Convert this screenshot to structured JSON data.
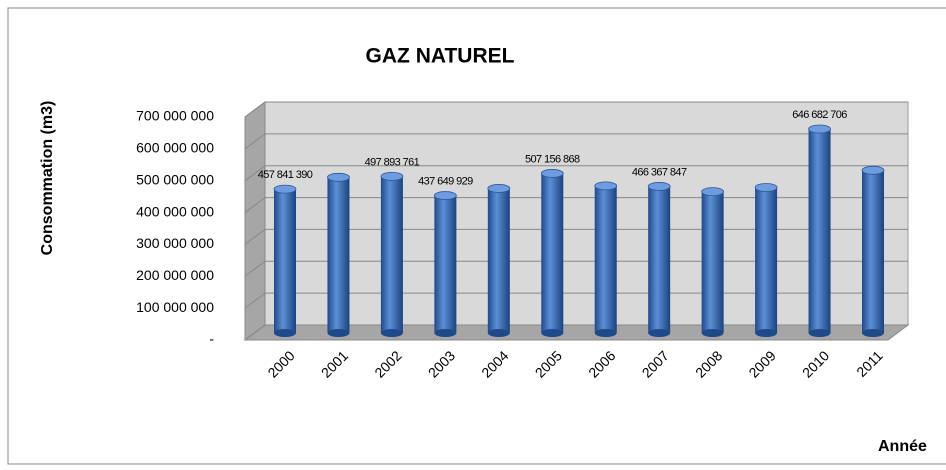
{
  "chart_data": {
    "type": "bar",
    "title": "GAZ NATUREL",
    "y_label": "Consommation  (m3)",
    "x_label": "Année",
    "categories": [
      "2000",
      "2001",
      "2002",
      "2003",
      "2004",
      "2005",
      "2006",
      "2007",
      "2008",
      "2009",
      "2010",
      "2011"
    ],
    "values": [
      457841390,
      495000000,
      497893761,
      437649929,
      460000000,
      507156868,
      468000000,
      466367847,
      450000000,
      463000000,
      646682706,
      517000000
    ],
    "value_labels": [
      "457 841 390",
      null,
      "497 893 761",
      "437 649 929",
      null,
      "507 156 868",
      null,
      "466 367 847",
      null,
      null,
      "646 682 706",
      null
    ],
    "color": "#3a6cb8",
    "ylim": [
      0,
      700000000
    ],
    "yticks": [
      {
        "value": 0,
        "label": "-"
      },
      {
        "value": 100000000,
        "label": "100 000 000"
      },
      {
        "value": 200000000,
        "label": "200 000 000"
      },
      {
        "value": 300000000,
        "label": "300 000 000"
      },
      {
        "value": 400000000,
        "label": "400 000 000"
      },
      {
        "value": 500000000,
        "label": "500 000 000"
      },
      {
        "value": 600000000,
        "label": "600 000 000"
      },
      {
        "value": 700000000,
        "label": "700 000 000"
      }
    ],
    "grid": true
  }
}
